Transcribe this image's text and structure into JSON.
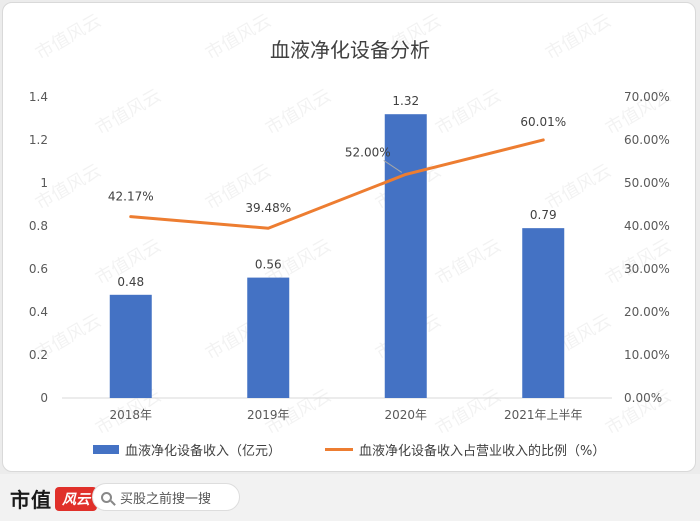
{
  "chart_data": {
    "type": "bar+line",
    "title": "血液净化设备分析",
    "categories": [
      "2018年",
      "2019年",
      "2020年",
      "2021年上半年"
    ],
    "series": [
      {
        "name": "血液净化设备收入（亿元）",
        "type": "bar",
        "axis": "left",
        "color": "#4472c4",
        "values": [
          0.48,
          0.56,
          1.32,
          0.79
        ],
        "labels": [
          "0.48",
          "0.56",
          "1.32",
          "0.79"
        ]
      },
      {
        "name": "血液净化设备收入占营业收入的比例（%）",
        "type": "line",
        "axis": "right",
        "color": "#ed7d31",
        "values": [
          42.17,
          39.48,
          52.0,
          60.01
        ],
        "labels": [
          "42.17%",
          "39.48%",
          "52.00%",
          "60.01%"
        ]
      }
    ],
    "y_left": {
      "min": 0,
      "max": 1.4,
      "ticks": [
        "0",
        "0.2",
        "0.4",
        "0.6",
        "0.8",
        "1",
        "1.2",
        "1.4"
      ]
    },
    "y_right": {
      "min": 0,
      "max": 70,
      "ticks": [
        "0.00%",
        "10.00%",
        "20.00%",
        "30.00%",
        "40.00%",
        "50.00%",
        "60.00%",
        "70.00%"
      ]
    },
    "grid": false,
    "legend": "bottom"
  },
  "footer": {
    "brand": "市值",
    "brand_mark": "风云",
    "search_text": "买股之前搜一搜",
    "watermark": "市值风云"
  }
}
